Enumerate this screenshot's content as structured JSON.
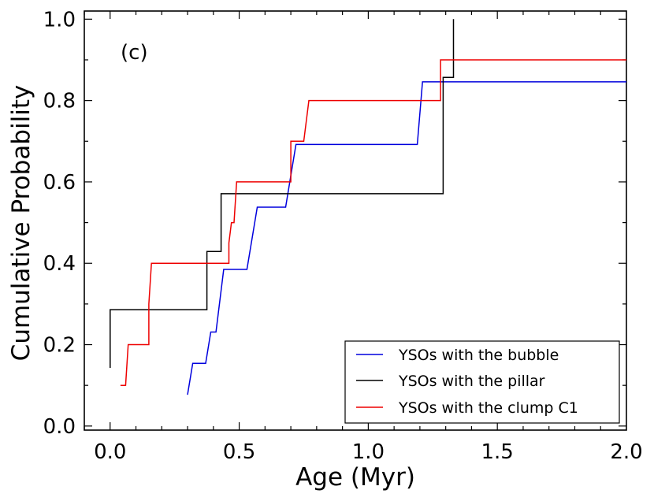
{
  "chart_data": {
    "type": "line",
    "subtype": "step-cdf",
    "panel_label": "(c)",
    "xlabel": "Age (Myr)",
    "ylabel": "Cumulative Probability",
    "xlim": [
      -0.1,
      2.0
    ],
    "ylim": [
      -0.01,
      1.02
    ],
    "x_ticks": [
      0.0,
      0.5,
      1.0,
      1.5,
      2.0
    ],
    "x_tick_labels": [
      "0.0",
      "0.5",
      "1.0",
      "1.5",
      "2.0"
    ],
    "y_ticks": [
      0.0,
      0.2,
      0.4,
      0.6,
      0.8,
      1.0
    ],
    "y_tick_labels": [
      "0.0",
      "0.2",
      "0.4",
      "0.6",
      "0.8",
      "1.0"
    ],
    "grid": false,
    "legend_position": "bottom-right",
    "series": [
      {
        "name": "YSOs with the bubble",
        "color": "#0000dd",
        "points": [
          [
            0.3,
            0.077
          ],
          [
            0.32,
            0.154
          ],
          [
            0.37,
            0.154
          ],
          [
            0.39,
            0.231
          ],
          [
            0.41,
            0.231
          ],
          [
            0.44,
            0.385
          ],
          [
            0.53,
            0.385
          ],
          [
            0.57,
            0.538
          ],
          [
            0.68,
            0.538
          ],
          [
            0.72,
            0.692
          ],
          [
            1.19,
            0.692
          ],
          [
            1.21,
            0.846
          ],
          [
            2.0,
            0.846
          ]
        ]
      },
      {
        "name": "YSOs with the pillar",
        "color": "#000000",
        "points": [
          [
            0.0,
            0.143
          ],
          [
            0.0,
            0.286
          ],
          [
            0.375,
            0.286
          ],
          [
            0.375,
            0.429
          ],
          [
            0.43,
            0.429
          ],
          [
            0.43,
            0.571
          ],
          [
            1.29,
            0.571
          ],
          [
            1.29,
            0.857
          ],
          [
            1.33,
            0.857
          ],
          [
            1.33,
            1.0
          ]
        ]
      },
      {
        "name": "YSOs with the clump C1",
        "color": "#ee0000",
        "points": [
          [
            0.04,
            0.1
          ],
          [
            0.06,
            0.1
          ],
          [
            0.07,
            0.2
          ],
          [
            0.15,
            0.2
          ],
          [
            0.15,
            0.3
          ],
          [
            0.16,
            0.4
          ],
          [
            0.46,
            0.4
          ],
          [
            0.46,
            0.45
          ],
          [
            0.47,
            0.5
          ],
          [
            0.48,
            0.5
          ],
          [
            0.49,
            0.6
          ],
          [
            0.7,
            0.6
          ],
          [
            0.7,
            0.7
          ],
          [
            0.75,
            0.7
          ],
          [
            0.77,
            0.8
          ],
          [
            1.28,
            0.8
          ],
          [
            1.28,
            0.9
          ],
          [
            2.0,
            0.9
          ]
        ]
      }
    ]
  }
}
